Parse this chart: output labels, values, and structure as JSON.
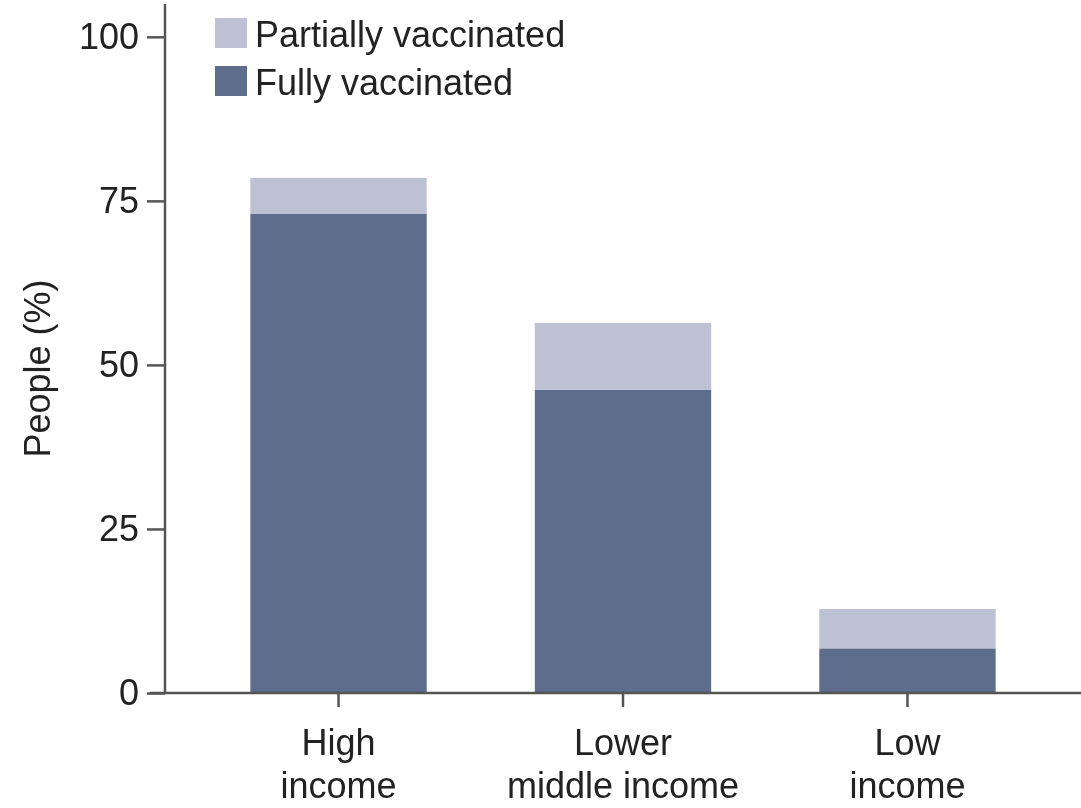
{
  "chart_data": {
    "type": "bar",
    "stacked": true,
    "ylabel": "People (%)",
    "categories": [
      "High\nincome",
      "Lower\nmiddle income",
      "Low\nincome"
    ],
    "series": [
      {
        "name": "Fully vaccinated",
        "color": "#5d6d8b",
        "values": [
          73,
          46.2,
          6.8
        ]
      },
      {
        "name": "Partially vaccinated",
        "color": "#bcc2d3",
        "values": [
          5.5,
          10.2,
          6
        ]
      }
    ],
    "ylim": [
      0,
      105
    ],
    "yticks": [
      0,
      25,
      50,
      75,
      100
    ],
    "grid": false,
    "legend": "top left"
  }
}
